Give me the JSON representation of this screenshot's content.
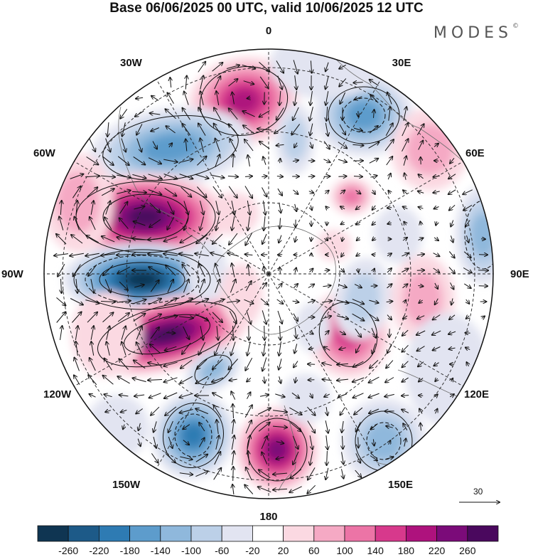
{
  "title": "Base 06/06/2025 00 UTC, valid 10/06/2025 12 UTC",
  "brand": "MODES",
  "brand_mark": "©",
  "longitude_labels": [
    {
      "id": "lon-0",
      "text": "0"
    },
    {
      "id": "lon-30e",
      "text": "30E"
    },
    {
      "id": "lon-60e",
      "text": "60E"
    },
    {
      "id": "lon-90e",
      "text": "90E"
    },
    {
      "id": "lon-120e",
      "text": "120E"
    },
    {
      "id": "lon-150e",
      "text": "150E"
    },
    {
      "id": "lon-180",
      "text": "180"
    },
    {
      "id": "lon-150w",
      "text": "150W"
    },
    {
      "id": "lon-120w",
      "text": "120W"
    },
    {
      "id": "lon-90w",
      "text": "90W"
    },
    {
      "id": "lon-60w",
      "text": "60W"
    },
    {
      "id": "lon-30w",
      "text": "30W"
    }
  ],
  "reference_vector": {
    "value": "30"
  },
  "colorbar": {
    "colors": [
      "#0f3552",
      "#1d5a88",
      "#2e7bb3",
      "#5d9ccc",
      "#8fb8dc",
      "#bcd0e8",
      "#e2e4f1",
      "#ffffff",
      "#fbd9e2",
      "#f5a9c4",
      "#ec74a6",
      "#d7398c",
      "#ae127d",
      "#7b0b79",
      "#4a085e"
    ],
    "ticks": [
      "-260",
      "-220",
      "-180",
      "-140",
      "-100",
      "-60",
      "-20",
      "20",
      "60",
      "100",
      "140",
      "180",
      "220",
      "260"
    ]
  },
  "colors": {
    "land_outline": "#6e6e6e",
    "grid": "#222222",
    "vector": "#111111"
  }
}
